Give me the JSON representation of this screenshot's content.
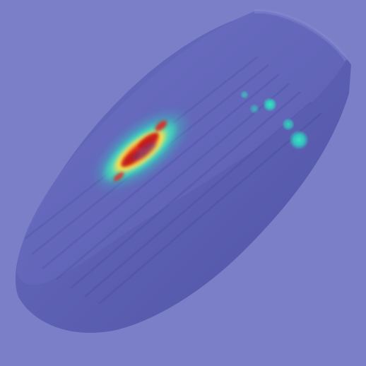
{
  "scene": {
    "subject": "rotated-disk-object",
    "overlay": "saliency-heatmap",
    "colors": {
      "background": "#7b7fc8",
      "object_top": "#6164b8",
      "object_side": "#5a5cab",
      "object_edge": "#4e51a0",
      "heat_low": "#2fd0c0",
      "heat_mid": "#ffe24a",
      "heat_high": "#d11d1d"
    }
  }
}
